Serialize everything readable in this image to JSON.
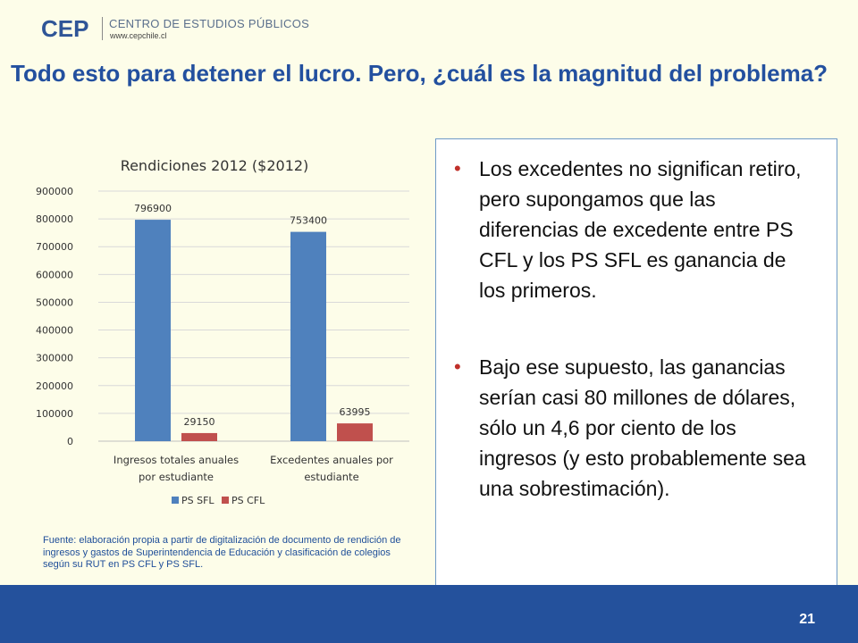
{
  "header": {
    "logo_mark": "CEP",
    "org_name": "CENTRO DE ESTUDIOS PÚBLICOS",
    "org_url": "www.cepchile.cl"
  },
  "slide": {
    "title": "Todo esto para detener el lucro. Pero, ¿cuál es la magnitud del problema?",
    "source_note": "Fuente: elaboración propia a partir de digitalización de documento de rendición de ingresos y gastos de Superintendencia de Educación y clasificación de colegios según su RUT en PS CFL y PS SFL.",
    "bullets": [
      "Los excedentes no significan retiro, pero supongamos que las diferencias de excedente entre PS CFL y los PS SFL es ganancia de los primeros.",
      "Bajo ese supuesto, las ganancias serían casi 80 millones de dólares, sólo un 4,6 por ciento de los ingresos (y esto probablemente sea una sobrestimación)."
    ],
    "bullet_symbol": "•",
    "page_number": "21"
  },
  "chart_data": {
    "type": "bar",
    "title": "Rendiciones 2012 ($2012)",
    "categories": [
      "Ingresos totales anuales por estudiante",
      "Excedentes anuales por estudiante"
    ],
    "category_lines": [
      [
        "Ingresos totales anuales",
        "por estudiante"
      ],
      [
        "Excedentes anuales por",
        "estudiante"
      ]
    ],
    "series": [
      {
        "name": "PS SFL",
        "values": [
          796900,
          753400
        ],
        "color": "#4f81bd"
      },
      {
        "name": "PS CFL",
        "values": [
          29150,
          63995
        ],
        "color": "#c0504d"
      }
    ],
    "data_labels": [
      [
        "796900",
        "753400"
      ],
      [
        "29150",
        "63995"
      ]
    ],
    "ylim": [
      0,
      900000
    ],
    "yticks": [
      0,
      100000,
      200000,
      300000,
      400000,
      500000,
      600000,
      700000,
      800000,
      900000
    ],
    "grid": true,
    "legend_position": "bottom"
  }
}
